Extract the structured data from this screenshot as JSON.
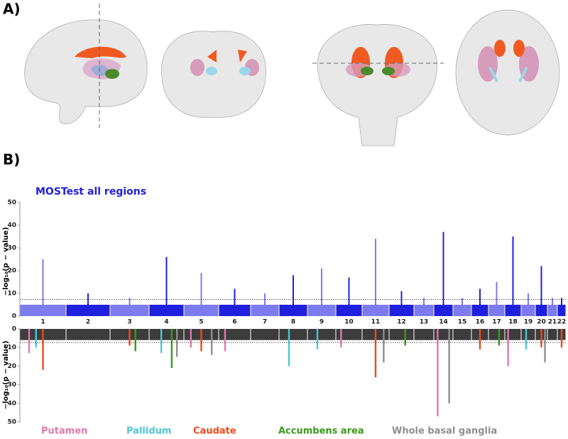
{
  "panels": [
    "A)",
    "B)"
  ],
  "chart_data": [
    {
      "type": "manhattan",
      "title": "MOSTest all regions",
      "y_label": "−log₁₀(p − value)",
      "categories": [
        "1",
        "2",
        "3",
        "4",
        "5",
        "6",
        "7",
        "8",
        "9",
        "10",
        "11",
        "12",
        "13",
        "14",
        "15",
        "16",
        "17",
        "18",
        "19",
        "20",
        "21",
        "22"
      ],
      "values": [
        25,
        10,
        8,
        26,
        19,
        12,
        10,
        18,
        21,
        17,
        34,
        11,
        8,
        37,
        8,
        12,
        15,
        35,
        10,
        22,
        8,
        8
      ],
      "background_level": 5,
      "threshold": 7.3,
      "colors": [
        "#7c7cf0",
        "#2020dc"
      ],
      "ylim": [
        0,
        50
      ],
      "yticks": [
        0,
        10,
        20,
        30,
        40,
        50
      ]
    },
    {
      "type": "manhattan-inverted",
      "y_label": "−log₁₀(p − value)",
      "background_level": 6,
      "threshold": 7.3,
      "color": "#3c3c3c",
      "ylim": [
        0,
        50
      ],
      "yticks": [
        0,
        10,
        20,
        30,
        40,
        50
      ],
      "series": [
        {
          "name": "Putamen",
          "color": "#e07aa8",
          "values": [
            13,
            null,
            null,
            null,
            10,
            12,
            null,
            null,
            null,
            10,
            null,
            null,
            null,
            47,
            null,
            null,
            null,
            20,
            null,
            null,
            null,
            null
          ]
        },
        {
          "name": "Pallidum",
          "color": "#4cc6d8",
          "values": [
            10,
            null,
            null,
            13,
            null,
            null,
            null,
            20,
            11,
            null,
            null,
            null,
            null,
            null,
            null,
            null,
            null,
            null,
            11,
            null,
            null,
            null
          ]
        },
        {
          "name": "Caudate",
          "color": "#f04a1a",
          "values": [
            22,
            null,
            9,
            null,
            12,
            null,
            null,
            null,
            null,
            null,
            26,
            null,
            null,
            null,
            null,
            11,
            null,
            null,
            null,
            10,
            null,
            10
          ]
        },
        {
          "name": "Accumbens area",
          "color": "#3a9a1a",
          "values": [
            null,
            null,
            12,
            21,
            null,
            null,
            null,
            null,
            null,
            null,
            null,
            9,
            null,
            null,
            null,
            null,
            9,
            null,
            null,
            null,
            null,
            null
          ]
        },
        {
          "name": "Whole basal ganglia",
          "color": "#8f8f8f",
          "values": [
            null,
            null,
            null,
            15,
            14,
            null,
            null,
            null,
            null,
            null,
            18,
            null,
            null,
            40,
            null,
            null,
            null,
            null,
            null,
            18,
            null,
            null
          ]
        }
      ]
    }
  ]
}
